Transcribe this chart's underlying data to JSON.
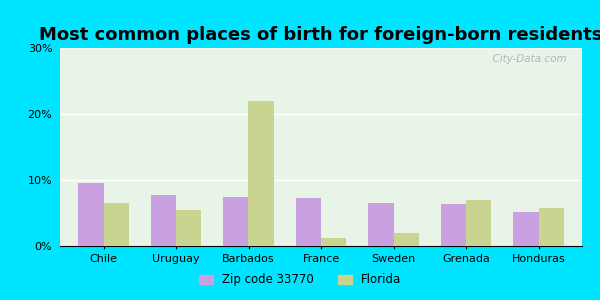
{
  "title": "Most common places of birth for foreign-born residents",
  "categories": [
    "Chile",
    "Uruguay",
    "Barbados",
    "France",
    "Sweden",
    "Grenada",
    "Honduras"
  ],
  "zip_values": [
    9.5,
    7.8,
    7.5,
    7.2,
    6.5,
    6.3,
    5.2
  ],
  "florida_values": [
    6.5,
    5.5,
    22.0,
    1.2,
    2.0,
    7.0,
    5.8
  ],
  "zip_color": "#c9a0e0",
  "florida_color": "#c8d490",
  "ylim": [
    0,
    30
  ],
  "yticks": [
    0,
    10,
    20,
    30
  ],
  "ytick_labels": [
    "0%",
    "10%",
    "20%",
    "30%"
  ],
  "bar_width": 0.35,
  "legend_zip": "Zip code 33770",
  "legend_florida": "Florida",
  "outer_color": "#00e5ff",
  "title_fontsize": 13,
  "watermark": "  City-Data.com",
  "bg_color": "#e8f4e8"
}
